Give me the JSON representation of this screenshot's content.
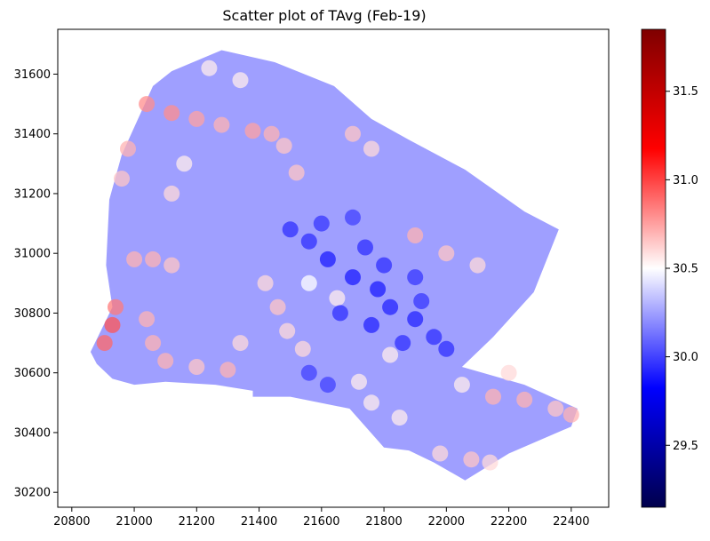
{
  "chart_data": {
    "type": "scatter",
    "title": "Scatter plot of TAvg (Feb-19)",
    "xlabel": "",
    "ylabel": "",
    "xlim": [
      20755,
      22520
    ],
    "ylim": [
      30150,
      31750
    ],
    "x_ticks": [
      20800,
      21000,
      21200,
      21400,
      21600,
      21800,
      22000,
      22200,
      22400
    ],
    "y_ticks": [
      30200,
      30400,
      30600,
      30800,
      31000,
      31200,
      31400,
      31600
    ],
    "grid": false,
    "colorbar": {
      "label": "",
      "colormap": "seismic",
      "range": [
        29.15,
        31.85
      ],
      "ticks": [
        29.5,
        30.0,
        30.5,
        31.0,
        31.5
      ],
      "tick_labels": [
        "29.5",
        "30.0",
        "30.5",
        "31.0",
        "31.5"
      ]
    },
    "region_outline": [
      [
        20860,
        30670
      ],
      [
        20930,
        30820
      ],
      [
        20910,
        30960
      ],
      [
        20920,
        31180
      ],
      [
        20960,
        31330
      ],
      [
        21060,
        31560
      ],
      [
        21120,
        31610
      ],
      [
        21280,
        31680
      ],
      [
        21450,
        31640
      ],
      [
        21640,
        31560
      ],
      [
        21760,
        31450
      ],
      [
        21880,
        31380
      ],
      [
        22060,
        31280
      ],
      [
        22250,
        31140
      ],
      [
        22360,
        31080
      ],
      [
        22280,
        30870
      ],
      [
        22150,
        30720
      ],
      [
        22050,
        30620
      ],
      [
        22250,
        30560
      ],
      [
        22420,
        30480
      ],
      [
        22400,
        30420
      ],
      [
        22200,
        30330
      ],
      [
        22060,
        30240
      ],
      [
        21960,
        30300
      ],
      [
        21880,
        30340
      ],
      [
        21800,
        30350
      ],
      [
        21690,
        30480
      ],
      [
        21500,
        30520
      ],
      [
        21380,
        30520
      ],
      [
        21380,
        30540
      ],
      [
        21260,
        30560
      ],
      [
        21100,
        30570
      ],
      [
        21000,
        30560
      ],
      [
        20930,
        30580
      ],
      [
        20880,
        30630
      ]
    ],
    "base_value": 30.2,
    "series": [
      {
        "role": "warm-corridors",
        "points": [
          [
            20905,
            30700,
            30.9
          ],
          [
            20930,
            30760,
            30.95
          ],
          [
            20940,
            30820,
            30.85
          ],
          [
            21000,
            30980,
            30.7
          ],
          [
            21060,
            30980,
            30.7
          ],
          [
            21120,
            30960,
            30.65
          ],
          [
            21040,
            31500,
            30.8
          ],
          [
            21120,
            31470,
            30.8
          ],
          [
            21200,
            31450,
            30.75
          ],
          [
            21280,
            31430,
            30.7
          ],
          [
            21380,
            31410,
            30.75
          ],
          [
            21440,
            31400,
            30.7
          ],
          [
            21480,
            31360,
            30.65
          ],
          [
            21520,
            31270,
            30.65
          ],
          [
            20980,
            31350,
            30.7
          ],
          [
            20960,
            31250,
            30.65
          ],
          [
            21040,
            30780,
            30.7
          ],
          [
            21060,
            30700,
            30.7
          ],
          [
            21100,
            30640,
            30.7
          ],
          [
            21200,
            30620,
            30.65
          ],
          [
            21300,
            30610,
            30.7
          ],
          [
            21340,
            30700,
            30.6
          ],
          [
            21420,
            30900,
            30.6
          ],
          [
            21460,
            30820,
            30.65
          ],
          [
            21490,
            30740,
            30.6
          ],
          [
            21540,
            30680,
            30.6
          ],
          [
            21700,
            31400,
            30.65
          ],
          [
            21760,
            31350,
            30.6
          ],
          [
            21900,
            31060,
            30.7
          ],
          [
            22000,
            31000,
            30.65
          ],
          [
            22100,
            30960,
            30.6
          ],
          [
            22150,
            30520,
            30.7
          ],
          [
            22250,
            30510,
            30.7
          ],
          [
            22350,
            30480,
            30.65
          ],
          [
            22400,
            30460,
            30.7
          ],
          [
            22080,
            30310,
            30.65
          ],
          [
            22140,
            30300,
            30.6
          ],
          [
            21980,
            30330,
            30.6
          ],
          [
            21720,
            30570,
            30.55
          ],
          [
            21760,
            30500,
            30.55
          ],
          [
            21850,
            30450,
            30.55
          ],
          [
            21820,
            30660,
            30.55
          ],
          [
            21650,
            30850,
            30.55
          ],
          [
            21560,
            30900,
            30.5
          ],
          [
            21240,
            31620,
            30.55
          ],
          [
            21340,
            31580,
            30.55
          ],
          [
            21120,
            31200,
            30.6
          ],
          [
            21160,
            31300,
            30.55
          ],
          [
            22200,
            30600,
            30.6
          ],
          [
            22050,
            30560,
            30.55
          ]
        ]
      },
      {
        "role": "cool-water-body",
        "points": [
          [
            21500,
            31080,
            29.95
          ],
          [
            21560,
            31040,
            29.95
          ],
          [
            21620,
            30980,
            29.9
          ],
          [
            21700,
            30920,
            29.9
          ],
          [
            21780,
            30880,
            29.9
          ],
          [
            21820,
            30820,
            29.92
          ],
          [
            21900,
            30780,
            29.92
          ],
          [
            21960,
            30720,
            29.95
          ],
          [
            22000,
            30680,
            29.95
          ],
          [
            21860,
            30700,
            29.95
          ],
          [
            21760,
            30760,
            29.92
          ],
          [
            21660,
            30800,
            29.95
          ],
          [
            21740,
            31020,
            29.95
          ],
          [
            21800,
            30960,
            29.95
          ],
          [
            21900,
            30920,
            29.97
          ],
          [
            21920,
            30840,
            29.97
          ],
          [
            21600,
            31100,
            29.97
          ],
          [
            21700,
            31120,
            30.0
          ],
          [
            21560,
            30600,
            30.0
          ],
          [
            21620,
            30560,
            30.0
          ]
        ]
      }
    ]
  }
}
